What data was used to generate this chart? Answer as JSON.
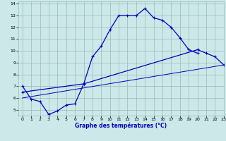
{
  "background_color": "#cce8e8",
  "grid_color": "#99bbbb",
  "line_color": "#0000bb",
  "xlabel": "Graphe des températures (°C)",
  "xlim": [
    -0.5,
    23
  ],
  "ylim": [
    4.5,
    14.2
  ],
  "xticks": [
    0,
    1,
    2,
    3,
    4,
    5,
    6,
    7,
    8,
    9,
    10,
    11,
    12,
    13,
    14,
    15,
    16,
    17,
    18,
    19,
    20,
    21,
    22,
    23
  ],
  "yticks": [
    5,
    6,
    7,
    8,
    9,
    10,
    11,
    12,
    13,
    14
  ],
  "series1_x": [
    0,
    1,
    2,
    3,
    4,
    5,
    6,
    7,
    8,
    9,
    10,
    11,
    12,
    13,
    14,
    15,
    16,
    17,
    18,
    19,
    20
  ],
  "series1_y": [
    7.0,
    5.9,
    5.7,
    4.6,
    4.9,
    5.4,
    5.5,
    7.2,
    9.5,
    10.4,
    11.8,
    13.0,
    13.0,
    13.0,
    13.6,
    12.8,
    12.6,
    12.0,
    11.1,
    10.1,
    9.8
  ],
  "series2_x": [
    0,
    7,
    20,
    21,
    22,
    23
  ],
  "series2_y": [
    6.5,
    7.2,
    10.1,
    9.8,
    9.5,
    8.8
  ],
  "series3_x": [
    0,
    23
  ],
  "series3_y": [
    6.0,
    8.8
  ]
}
